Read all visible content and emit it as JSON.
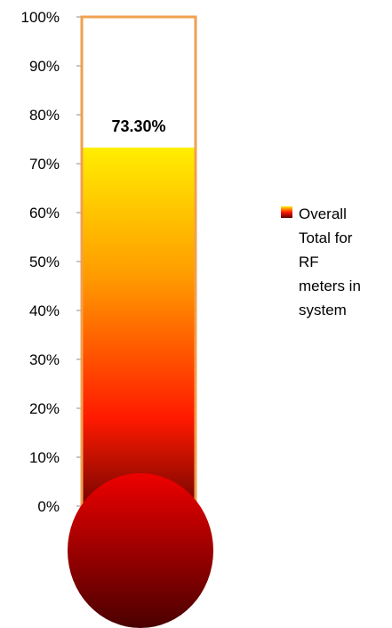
{
  "chart_data": {
    "type": "bar",
    "style": "thermometer",
    "categories": [
      ""
    ],
    "series": [
      {
        "name": "Overall Total for RF meters in system",
        "values": [
          73.3
        ]
      }
    ],
    "ylim": [
      0,
      100
    ],
    "yticks": [
      "0%",
      "10%",
      "20%",
      "30%",
      "40%",
      "50%",
      "60%",
      "70%",
      "80%",
      "90%",
      "100%"
    ],
    "data_label": "73.30%",
    "legend": {
      "placement": "right",
      "lines": [
        "Overall",
        "Total for",
        "RF",
        "meters in",
        "system"
      ]
    },
    "colors": {
      "frame": "#f0a050",
      "fill_top": "#ffee00",
      "fill_mid": "#ff9900",
      "fill_red": "#ff1a00",
      "fill_bottom": "#5a0000",
      "bulb_top": "#ee0000",
      "bulb_bottom": "#4a0000"
    }
  }
}
